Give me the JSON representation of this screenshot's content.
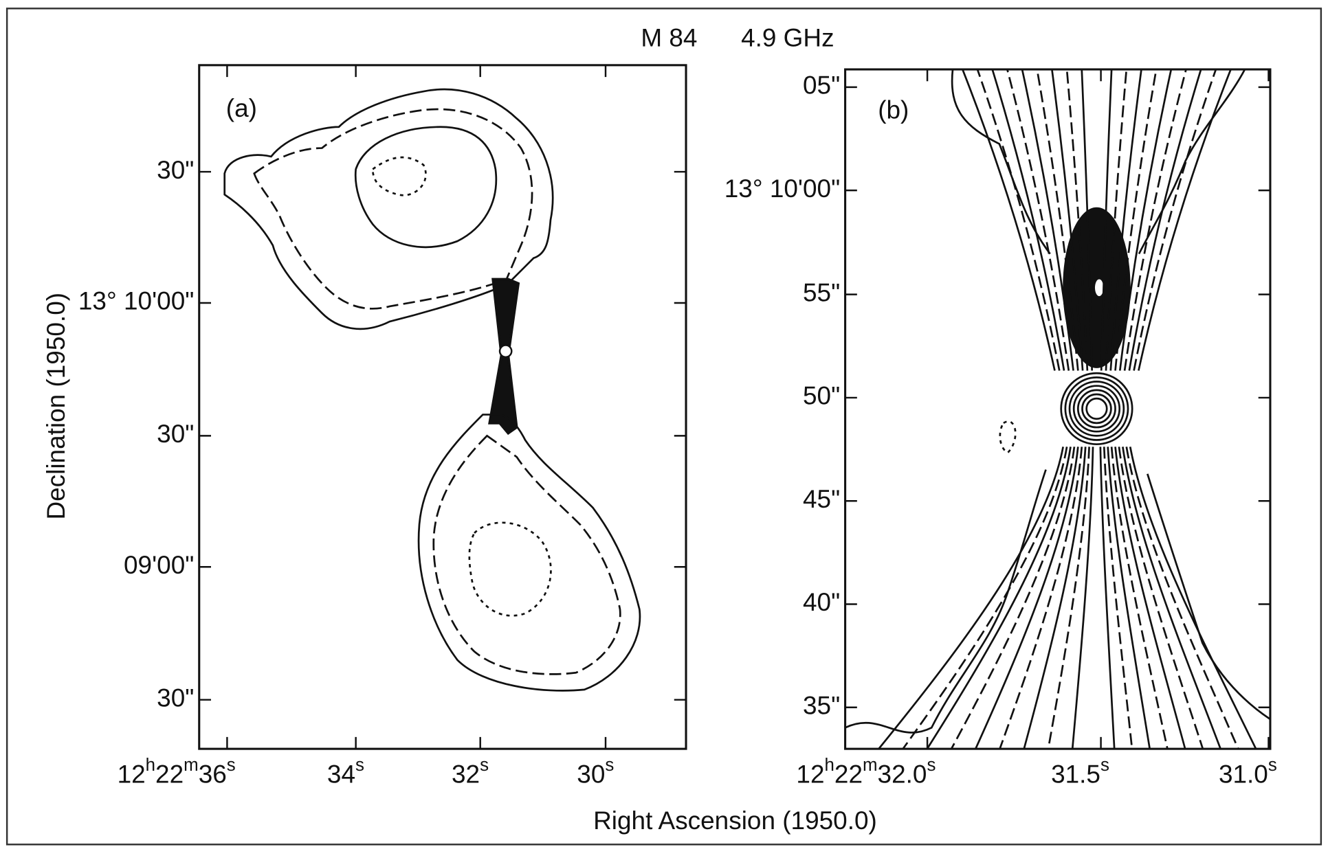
{
  "title": {
    "object": "M 84",
    "frequency": "4.9 GHz"
  },
  "axis_labels": {
    "y": "Declination (1950.0)",
    "x": "Right Ascension (1950.0)"
  },
  "panels": [
    {
      "label": "(a)",
      "y_ticks": [
        "30\"",
        "13° 10'00\"",
        "30\"",
        "09'00\"",
        "30\""
      ],
      "x_ticks": [
        [
          "12",
          "h",
          "22",
          "m",
          "36",
          "s"
        ],
        [
          "34",
          "s"
        ],
        [
          "32",
          "s"
        ],
        [
          "30",
          "s"
        ]
      ]
    },
    {
      "label": "(b)",
      "y_ticks": [
        "05\"",
        "13° 10'00\"",
        "55\"",
        "50\"",
        "45\"",
        "40\"",
        "35\""
      ],
      "x_ticks": [
        [
          "12",
          "h",
          "22",
          "m",
          "32.0",
          "s"
        ],
        [
          "31.5",
          "s"
        ],
        [
          "31.0",
          "s"
        ]
      ]
    }
  ]
}
